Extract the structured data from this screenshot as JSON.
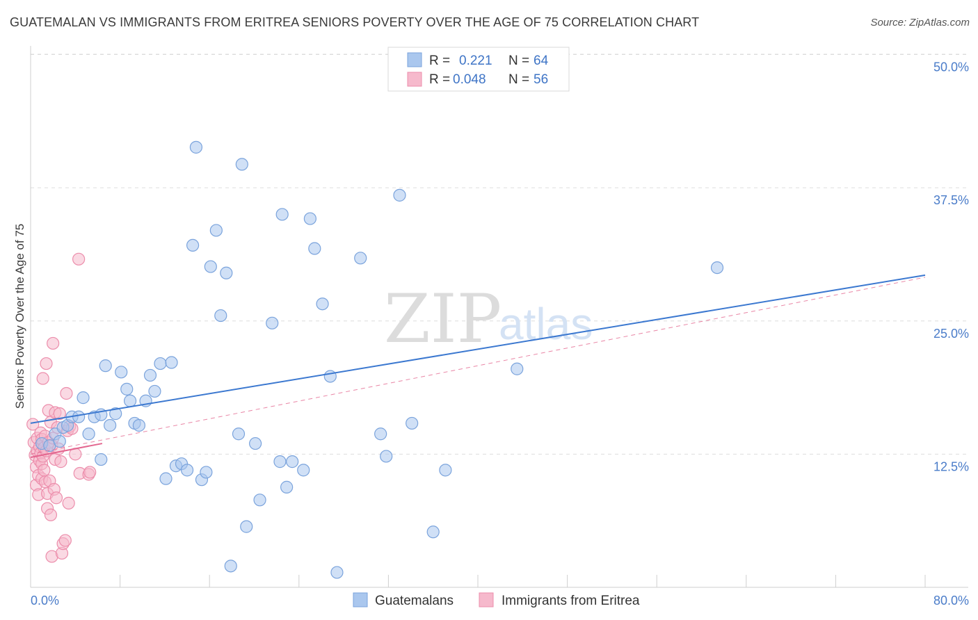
{
  "title": "GUATEMALAN VS IMMIGRANTS FROM ERITREA SENIORS POVERTY OVER THE AGE OF 75 CORRELATION CHART",
  "source": "Source: ZipAtlas.com",
  "watermark": {
    "zip": "ZIP",
    "atlas": "atlas"
  },
  "colors": {
    "blue_fill": "#aac7ee",
    "blue_stroke": "#7aa3dc",
    "blue_line": "#3b78d0",
    "pink_fill": "#f6b9cc",
    "pink_stroke": "#ec8dab",
    "pink_line": "#e3668f",
    "grid": "#dddddd",
    "tick_label": "#4a7cc9"
  },
  "legend": {
    "rows": [
      {
        "r_label": "R =",
        "r_value": "0.221",
        "n_label": "N =",
        "n_value": "64"
      },
      {
        "r_label": "R =",
        "r_value": "0.048",
        "n_label": "N =",
        "n_value": "56"
      }
    ]
  },
  "chart_data": {
    "type": "scatter",
    "title": "GUATEMALAN VS IMMIGRANTS FROM ERITREA SENIORS POVERTY OVER THE AGE OF 75 CORRELATION CHART",
    "xlabel": "",
    "ylabel": "Seniors Poverty Over the Age of 75",
    "xlim": [
      0,
      80
    ],
    "ylim": [
      0,
      50
    ],
    "x_tick_labels": [
      "0.0%",
      "80.0%"
    ],
    "y_ticks": [
      12.5,
      25.0,
      37.5,
      50.0
    ],
    "y_tick_labels": [
      "12.5%",
      "25.0%",
      "37.5%",
      "50.0%"
    ],
    "legend_position": "top-center",
    "series": [
      {
        "name": "Guatemalans",
        "trend": {
          "x": [
            0,
            80
          ],
          "y": [
            15.4,
            29.3
          ]
        },
        "points": [
          [
            1.0,
            13.5
          ],
          [
            1.7,
            13.3
          ],
          [
            2.2,
            14.4
          ],
          [
            2.6,
            13.7
          ],
          [
            2.9,
            15.0
          ],
          [
            3.3,
            15.2
          ],
          [
            3.7,
            16.0
          ],
          [
            4.3,
            16.0
          ],
          [
            4.7,
            17.8
          ],
          [
            5.2,
            14.4
          ],
          [
            5.7,
            16.0
          ],
          [
            6.3,
            16.2
          ],
          [
            6.3,
            12.0
          ],
          [
            6.7,
            20.8
          ],
          [
            7.1,
            15.2
          ],
          [
            7.6,
            16.3
          ],
          [
            8.1,
            20.2
          ],
          [
            8.6,
            18.6
          ],
          [
            8.9,
            17.5
          ],
          [
            9.3,
            15.4
          ],
          [
            9.7,
            15.2
          ],
          [
            10.3,
            17.5
          ],
          [
            10.7,
            19.9
          ],
          [
            11.1,
            18.4
          ],
          [
            11.6,
            21.0
          ],
          [
            12.1,
            10.2
          ],
          [
            12.6,
            21.1
          ],
          [
            13.0,
            11.4
          ],
          [
            13.5,
            11.6
          ],
          [
            14.0,
            11.0
          ],
          [
            14.5,
            32.1
          ],
          [
            14.8,
            41.3
          ],
          [
            15.3,
            10.1
          ],
          [
            15.7,
            10.8
          ],
          [
            16.1,
            30.1
          ],
          [
            16.6,
            33.5
          ],
          [
            17.0,
            25.5
          ],
          [
            17.5,
            29.5
          ],
          [
            17.9,
            2.0
          ],
          [
            18.6,
            14.4
          ],
          [
            18.9,
            39.7
          ],
          [
            19.3,
            5.7
          ],
          [
            20.1,
            13.5
          ],
          [
            20.5,
            8.2
          ],
          [
            21.6,
            24.8
          ],
          [
            22.3,
            11.8
          ],
          [
            22.5,
            35.0
          ],
          [
            22.9,
            9.4
          ],
          [
            23.4,
            11.8
          ],
          [
            24.4,
            11.0
          ],
          [
            25.0,
            34.6
          ],
          [
            25.4,
            31.8
          ],
          [
            26.1,
            26.6
          ],
          [
            26.8,
            19.8
          ],
          [
            27.4,
            1.4
          ],
          [
            29.5,
            30.9
          ],
          [
            31.3,
            14.4
          ],
          [
            31.8,
            12.3
          ],
          [
            33.0,
            36.8
          ],
          [
            34.1,
            15.4
          ],
          [
            36.0,
            5.2
          ],
          [
            37.1,
            11.0
          ],
          [
            43.5,
            20.5
          ],
          [
            61.4,
            30.0
          ]
        ]
      },
      {
        "name": "Immigrants from Eritrea",
        "trend": {
          "x": [
            0,
            6.4
          ],
          "y": [
            12.2,
            13.5
          ]
        },
        "points": [
          [
            0.2,
            15.3
          ],
          [
            0.3,
            13.6
          ],
          [
            0.4,
            12.4
          ],
          [
            0.5,
            11.3
          ],
          [
            0.5,
            9.6
          ],
          [
            0.6,
            14.0
          ],
          [
            0.6,
            12.8
          ],
          [
            0.7,
            10.5
          ],
          [
            0.7,
            8.7
          ],
          [
            0.8,
            13.2
          ],
          [
            0.8,
            11.9
          ],
          [
            0.9,
            14.5
          ],
          [
            0.9,
            12.6
          ],
          [
            1.0,
            13.9
          ],
          [
            1.0,
            11.6
          ],
          [
            1.0,
            10.2
          ],
          [
            1.1,
            19.6
          ],
          [
            1.1,
            12.3
          ],
          [
            1.2,
            13.1
          ],
          [
            1.2,
            11.0
          ],
          [
            1.3,
            14.2
          ],
          [
            1.3,
            9.9
          ],
          [
            1.4,
            21.0
          ],
          [
            1.4,
            12.8
          ],
          [
            1.5,
            8.8
          ],
          [
            1.5,
            7.4
          ],
          [
            1.6,
            16.6
          ],
          [
            1.6,
            13.6
          ],
          [
            1.7,
            10.0
          ],
          [
            1.8,
            15.5
          ],
          [
            1.8,
            6.8
          ],
          [
            1.9,
            13.3
          ],
          [
            1.9,
            2.9
          ],
          [
            2.0,
            22.9
          ],
          [
            2.0,
            14.0
          ],
          [
            2.1,
            9.2
          ],
          [
            2.2,
            16.4
          ],
          [
            2.2,
            12.0
          ],
          [
            2.3,
            8.4
          ],
          [
            2.4,
            15.0
          ],
          [
            2.5,
            13.0
          ],
          [
            2.6,
            16.3
          ],
          [
            2.7,
            11.8
          ],
          [
            2.8,
            3.2
          ],
          [
            2.9,
            4.1
          ],
          [
            3.1,
            4.4
          ],
          [
            3.2,
            18.2
          ],
          [
            3.3,
            14.7
          ],
          [
            3.4,
            7.9
          ],
          [
            3.5,
            15.1
          ],
          [
            3.7,
            14.9
          ],
          [
            4.0,
            12.5
          ],
          [
            4.3,
            30.8
          ],
          [
            4.4,
            10.7
          ],
          [
            5.2,
            10.6
          ],
          [
            5.3,
            10.8
          ]
        ]
      }
    ],
    "reference_line": {
      "style": "dashed",
      "x": [
        0,
        80
      ],
      "y": [
        12.5,
        29.1
      ]
    }
  }
}
